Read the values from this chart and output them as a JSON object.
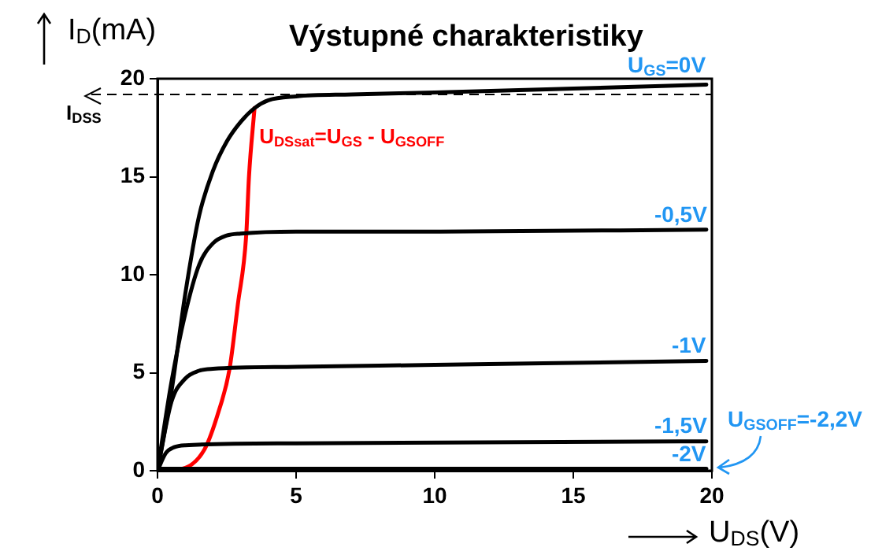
{
  "chart_data": {
    "type": "line",
    "title": "Výstupné charakteristiky",
    "xlabel": "U$_{DS}$(V)",
    "ylabel": "I$_{D}$(mA)",
    "xlim": [
      0,
      20
    ],
    "ylim": [
      0,
      20
    ],
    "xticks": [
      0,
      5,
      10,
      15,
      20
    ],
    "yticks": [
      0,
      5,
      10,
      15,
      20
    ],
    "grid": false,
    "legend": false,
    "marker": "none",
    "line_style": "solid",
    "series": [
      {
        "name": "U$_{GS}$=0V",
        "color": "#000000",
        "x": [
          0,
          0.5,
          1,
          1.5,
          2,
          2.5,
          3,
          3.5,
          4,
          5,
          7,
          10,
          15,
          19.8
        ],
        "values": [
          0,
          4,
          9,
          13,
          15.3,
          16.8,
          17.8,
          18.5,
          18.9,
          19.1,
          19.2,
          19.3,
          19.5,
          19.7
        ]
      },
      {
        "name": "-0,5V",
        "color": "#000000",
        "x": [
          0,
          0.5,
          1,
          1.5,
          2,
          2.5,
          3,
          5,
          10,
          19.8
        ],
        "values": [
          0,
          4.5,
          8,
          10.5,
          11.6,
          12,
          12.1,
          12.2,
          12.2,
          12.3
        ]
      },
      {
        "name": "-1V",
        "color": "#000000",
        "x": [
          0,
          0.5,
          1,
          1.5,
          2,
          5,
          10,
          19.8
        ],
        "values": [
          0,
          3.5,
          4.7,
          5.1,
          5.2,
          5.3,
          5.4,
          5.6
        ]
      },
      {
        "name": "-1,5V",
        "color": "#000000",
        "x": [
          0,
          0.3,
          0.6,
          1,
          5,
          19.8
        ],
        "values": [
          0,
          0.9,
          1.2,
          1.3,
          1.4,
          1.5
        ]
      },
      {
        "name": "-2V",
        "color": "#000000",
        "x": [
          0,
          19.8
        ],
        "values": [
          0.1,
          0.1
        ]
      },
      {
        "name": "U$_{DSsat}$=U$_{GS}$ - U$_{GSOFF}$",
        "color": "#ff0000",
        "x": [
          0,
          0.9,
          1.7,
          2.2,
          2.6,
          2.9,
          3.2,
          3.3,
          3.5
        ],
        "values": [
          0,
          0.1,
          1.1,
          3,
          5.2,
          8.5,
          12,
          15,
          18.5
        ]
      }
    ],
    "ref_lines": [
      {
        "axis": "y",
        "value": 19.2,
        "label": "I$_{DSS}$",
        "line_style": "dashed",
        "color": "#000000"
      }
    ],
    "annotations": [
      {
        "text": "U$_{GSOFF}$=-2,2V",
        "x": 20,
        "y": 0.1
      }
    ]
  }
}
